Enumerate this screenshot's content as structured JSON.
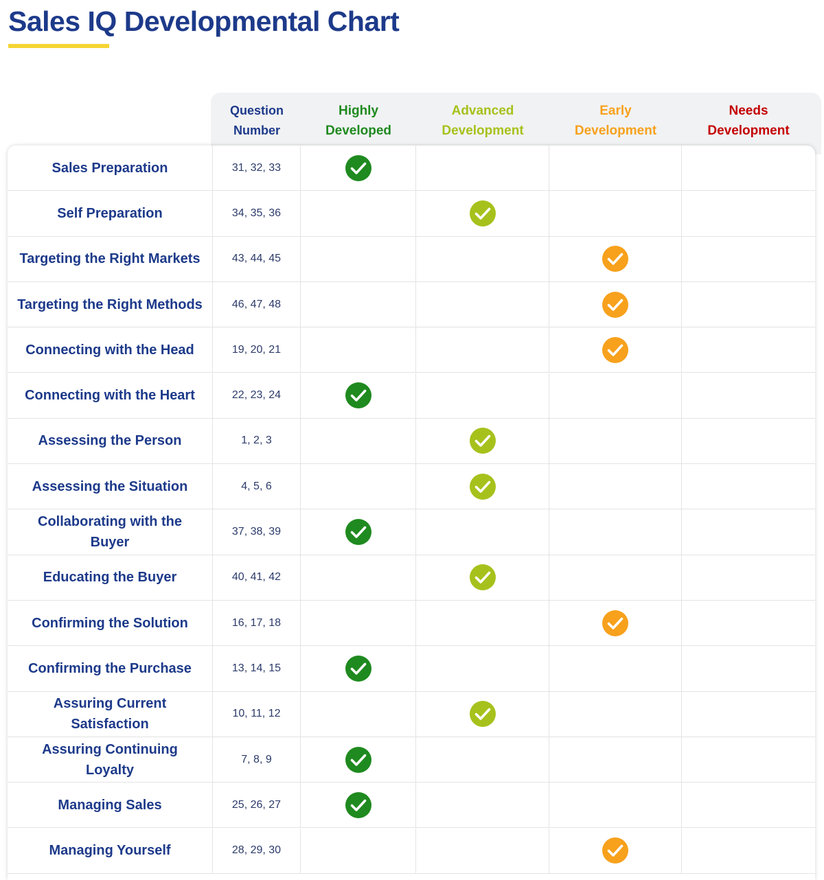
{
  "title": "Sales IQ Developmental Chart",
  "header": {
    "question_column": "Question Number",
    "columns": [
      {
        "label": "Highly Developed",
        "color": "#1f8a1f"
      },
      {
        "label": "Advanced Development",
        "color": "#a7c11c"
      },
      {
        "label": "Early Development",
        "color": "#f7a11c"
      },
      {
        "label": "Needs Development",
        "color": "#c40000"
      }
    ]
  },
  "rows": [
    {
      "label": "Sales Preparation",
      "questions": "31, 32, 33",
      "checks": [
        true,
        false,
        false,
        false
      ]
    },
    {
      "label": "Self Preparation",
      "questions": "34, 35, 36",
      "checks": [
        false,
        true,
        false,
        false
      ]
    },
    {
      "label": "Targeting the Right Markets",
      "questions": "43, 44, 45",
      "checks": [
        false,
        false,
        true,
        false
      ]
    },
    {
      "label": "Targeting the Right Methods",
      "questions": "46, 47, 48",
      "checks": [
        false,
        false,
        true,
        false
      ]
    },
    {
      "label": "Connecting with the Head",
      "questions": "19, 20, 21",
      "checks": [
        false,
        false,
        true,
        false
      ]
    },
    {
      "label": "Connecting with the Heart",
      "questions": "22, 23, 24",
      "checks": [
        true,
        false,
        false,
        false
      ]
    },
    {
      "label": "Assessing the Person",
      "questions": "1, 2, 3",
      "checks": [
        false,
        true,
        false,
        false
      ]
    },
    {
      "label": "Assessing the Situation",
      "questions": "4, 5, 6",
      "checks": [
        false,
        true,
        false,
        false
      ]
    },
    {
      "label": "Collaborating with the Buyer",
      "questions": "37, 38, 39",
      "checks": [
        true,
        false,
        false,
        false
      ]
    },
    {
      "label": "Educating the Buyer",
      "questions": "40, 41, 42",
      "checks": [
        false,
        true,
        false,
        false
      ]
    },
    {
      "label": "Confirming the Solution",
      "questions": "16, 17, 18",
      "checks": [
        false,
        false,
        true,
        false
      ]
    },
    {
      "label": "Confirming the Purchase",
      "questions": "13, 14, 15",
      "checks": [
        true,
        false,
        false,
        false
      ]
    },
    {
      "label": "Assuring Current Satisfaction",
      "questions": "10, 11, 12",
      "checks": [
        false,
        true,
        false,
        false
      ]
    },
    {
      "label": "Assuring Continuing Loyalty",
      "questions": "7, 8, 9",
      "checks": [
        true,
        false,
        false,
        false
      ]
    },
    {
      "label": "Managing Sales",
      "questions": "25, 26, 27",
      "checks": [
        true,
        false,
        false,
        false
      ]
    },
    {
      "label": "Managing Yourself",
      "questions": "28, 29, 30",
      "checks": [
        false,
        false,
        true,
        false
      ]
    }
  ]
}
